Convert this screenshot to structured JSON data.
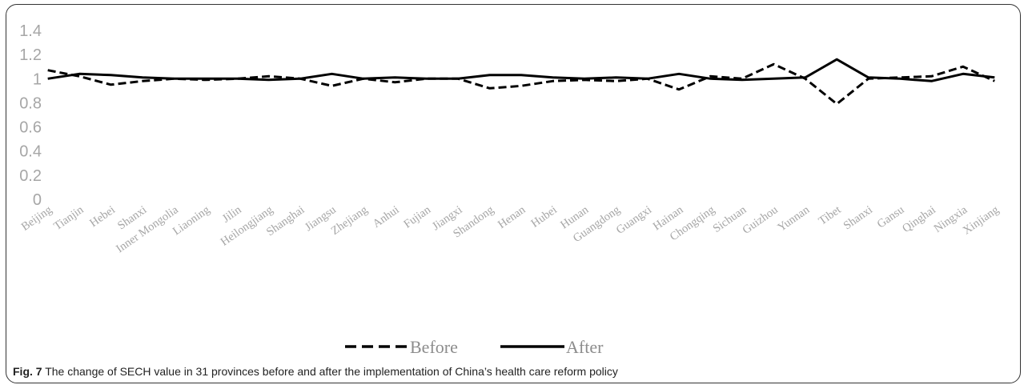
{
  "chart_data": {
    "type": "line",
    "categories": [
      "Beijing",
      "Tianjin",
      "Hebei",
      "Shanxi",
      "Inner Mongolia",
      "Liaoning",
      "Jilin",
      "Heilongjiang",
      "Shanghai",
      "Jiangsu",
      "Zhejiang",
      "Anhui",
      "Fujian",
      "Jiangxi",
      "Shandong",
      "Henan",
      "Hubei",
      "Hunan",
      "Guangdong",
      "Guangxi",
      "Hainan",
      "Chongqing",
      "Sichuan",
      "Guizhou",
      "Yunnan",
      "Tibet",
      "Shanxi",
      "Gansu",
      "Qinghai",
      "Ningxia",
      "Xinjiang"
    ],
    "series": [
      {
        "name": "Before",
        "style": "dashed",
        "color": "#000000",
        "values": [
          1.07,
          1.02,
          0.95,
          0.98,
          1.0,
          0.99,
          1.0,
          1.02,
          1.0,
          0.94,
          1.0,
          0.97,
          1.0,
          1.0,
          0.92,
          0.94,
          0.98,
          0.99,
          0.98,
          1.0,
          0.91,
          1.02,
          1.0,
          1.12,
          1.0,
          0.79,
          1.0,
          1.01,
          1.02,
          1.1,
          0.98
        ]
      },
      {
        "name": "After",
        "style": "solid",
        "color": "#000000",
        "values": [
          1.0,
          1.04,
          1.03,
          1.01,
          1.0,
          1.0,
          1.0,
          0.99,
          1.0,
          1.04,
          1.0,
          1.01,
          1.0,
          1.0,
          1.03,
          1.03,
          1.01,
          1.0,
          1.01,
          1.0,
          1.04,
          1.0,
          0.99,
          1.0,
          1.01,
          1.16,
          1.01,
          1.0,
          0.98,
          1.04,
          1.01
        ]
      }
    ],
    "y_ticks": [
      "0",
      "0.2",
      "0.4",
      "0.6",
      "0.8",
      "1",
      "1.2",
      "1.4"
    ],
    "ylim": [
      0,
      1.4
    ],
    "grid": false,
    "legend_position": "bottom",
    "tick_color": "#a6a6a6"
  },
  "caption": {
    "label": "Fig. 7",
    "text": " The change of SECH value in 31 provinces before and after the implementation of China’s health care reform policy"
  }
}
